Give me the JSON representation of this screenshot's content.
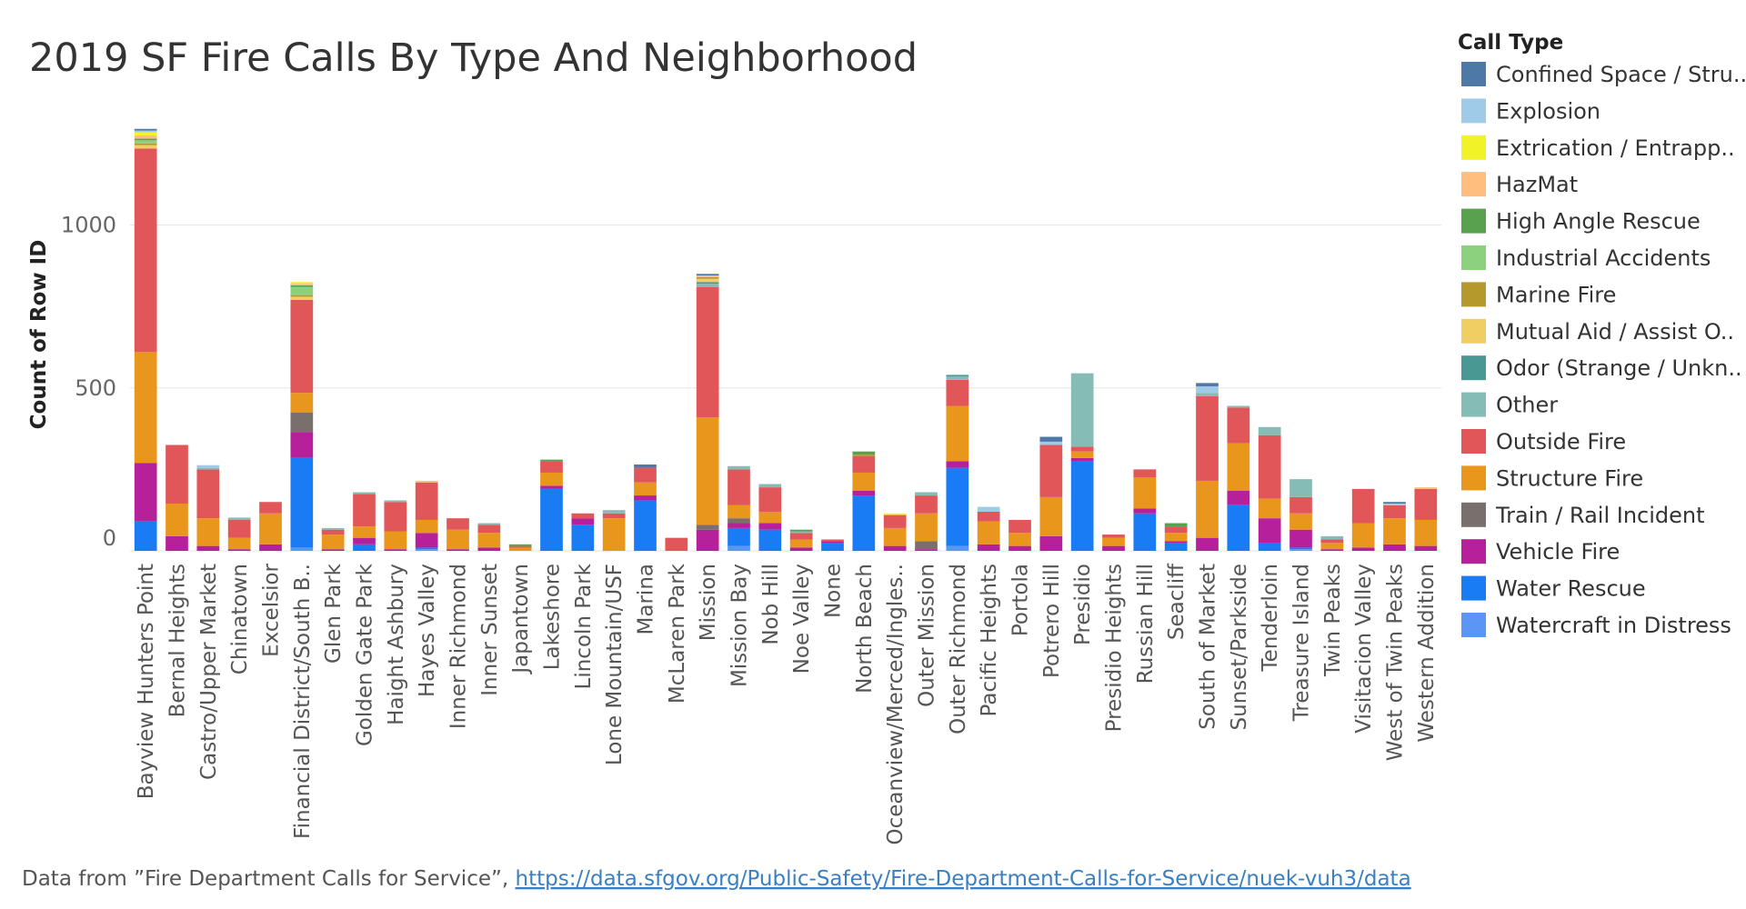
{
  "chart_data": {
    "type": "bar",
    "stacked": true,
    "title": "2019 SF Fire Calls By Type And Neighborhood",
    "ylabel": "Count of Row ID",
    "xlabel": "",
    "yticks": [
      0,
      500,
      1000
    ],
    "ylim": [
      0,
      1300
    ],
    "grid": true,
    "legend": {
      "title": "Call Type",
      "placement": "right",
      "items": [
        {
          "label": "Confined Space / Stru..",
          "color": "#4e79a7"
        },
        {
          "label": "Explosion",
          "color": "#a0cbe8"
        },
        {
          "label": "Extrication / Entrapp..",
          "color": "#f1f228"
        },
        {
          "label": "HazMat",
          "color": "#ffbe7d"
        },
        {
          "label": "High Angle Rescue",
          "color": "#59a14f"
        },
        {
          "label": "Industrial Accidents",
          "color": "#8cd17d"
        },
        {
          "label": "Marine Fire",
          "color": "#b6992d"
        },
        {
          "label": "Mutual Aid / Assist O..",
          "color": "#f1ce63"
        },
        {
          "label": "Odor (Strange / Unkn..",
          "color": "#499894"
        },
        {
          "label": "Other",
          "color": "#86bcb6"
        },
        {
          "label": "Outside Fire",
          "color": "#e15759"
        },
        {
          "label": "Structure Fire",
          "color": "#e8961c"
        },
        {
          "label": "Train / Rail Incident",
          "color": "#79706e"
        },
        {
          "label": "Vehicle Fire",
          "color": "#b6209a"
        },
        {
          "label": "Water Rescue",
          "color": "#1a7cf5"
        },
        {
          "label": "Watercraft in Distress",
          "color": "#5b95f5"
        }
      ]
    },
    "categories": [
      "Bayview Hunters Point",
      "Bernal Heights",
      "Castro/Upper Market",
      "Chinatown",
      "Excelsior",
      "Financial District/South B..",
      "Glen Park",
      "Golden Gate Park",
      "Haight Ashbury",
      "Hayes Valley",
      "Inner Richmond",
      "Inner Sunset",
      "Japantown",
      "Lakeshore",
      "Lincoln Park",
      "Lone Mountain/USF",
      "Marina",
      "McLaren Park",
      "Mission",
      "Mission Bay",
      "Nob Hill",
      "Noe Valley",
      "None",
      "North Beach",
      "Oceanview/Merced/Ingles..",
      "Outer Mission",
      "Outer Richmond",
      "Pacific Heights",
      "Portola",
      "Potrero Hill",
      "Presidio",
      "Presidio Heights",
      "Russian Hill",
      "Seacliff",
      "South of Market",
      "Sunset/Parkside",
      "Tenderloin",
      "Treasure Island",
      "Twin Peaks",
      "Visitacion Valley",
      "West of Twin Peaks",
      "Western Addition"
    ],
    "series": [
      {
        "name": "Confined Space / Stru..",
        "values": [
          5,
          0,
          0,
          0,
          0,
          0,
          0,
          0,
          0,
          0,
          0,
          0,
          0,
          0,
          0,
          0,
          10,
          0,
          5,
          0,
          0,
          0,
          0,
          0,
          0,
          0,
          0,
          0,
          0,
          15,
          0,
          0,
          0,
          0,
          10,
          0,
          0,
          0,
          0,
          0,
          5,
          0
        ]
      },
      {
        "name": "Explosion",
        "values": [
          5,
          0,
          8,
          0,
          0,
          0,
          0,
          0,
          0,
          0,
          0,
          0,
          0,
          0,
          0,
          0,
          0,
          0,
          0,
          0,
          0,
          0,
          0,
          0,
          0,
          0,
          0,
          15,
          0,
          10,
          0,
          0,
          0,
          0,
          20,
          0,
          0,
          0,
          0,
          0,
          5,
          0
        ]
      },
      {
        "name": "Extrication / Entrapp..",
        "values": [
          10,
          0,
          0,
          0,
          0,
          5,
          0,
          0,
          0,
          0,
          0,
          0,
          0,
          0,
          0,
          0,
          0,
          0,
          0,
          0,
          0,
          0,
          0,
          0,
          5,
          0,
          0,
          0,
          0,
          0,
          0,
          0,
          0,
          0,
          0,
          0,
          0,
          0,
          0,
          0,
          0,
          0
        ]
      },
      {
        "name": "HazMat",
        "values": [
          10,
          0,
          0,
          0,
          0,
          5,
          0,
          0,
          0,
          5,
          0,
          0,
          0,
          0,
          0,
          0,
          0,
          0,
          5,
          0,
          0,
          0,
          0,
          0,
          0,
          0,
          0,
          0,
          0,
          0,
          0,
          0,
          0,
          0,
          0,
          0,
          0,
          0,
          0,
          0,
          0,
          5
        ]
      },
      {
        "name": "High Angle Rescue",
        "values": [
          5,
          0,
          0,
          0,
          0,
          5,
          0,
          0,
          0,
          0,
          0,
          0,
          5,
          5,
          0,
          0,
          0,
          0,
          0,
          0,
          0,
          5,
          0,
          10,
          0,
          0,
          0,
          0,
          0,
          0,
          0,
          0,
          0,
          10,
          0,
          0,
          0,
          0,
          0,
          0,
          0,
          0
        ]
      },
      {
        "name": "Industrial Accidents",
        "values": [
          10,
          0,
          0,
          0,
          0,
          25,
          0,
          0,
          0,
          0,
          0,
          0,
          0,
          0,
          0,
          0,
          0,
          0,
          0,
          0,
          0,
          0,
          0,
          0,
          0,
          0,
          0,
          0,
          0,
          0,
          0,
          0,
          0,
          0,
          0,
          0,
          0,
          0,
          0,
          0,
          0,
          0
        ]
      },
      {
        "name": "Marine Fire",
        "values": [
          5,
          0,
          0,
          0,
          0,
          5,
          0,
          0,
          0,
          0,
          0,
          0,
          0,
          0,
          0,
          0,
          0,
          0,
          5,
          0,
          0,
          0,
          0,
          5,
          0,
          0,
          0,
          0,
          0,
          0,
          0,
          0,
          0,
          0,
          0,
          0,
          0,
          0,
          0,
          0,
          0,
          0
        ]
      },
      {
        "name": "Mutual Aid / Assist O..",
        "values": [
          10,
          0,
          0,
          0,
          0,
          10,
          0,
          0,
          0,
          0,
          0,
          0,
          0,
          0,
          0,
          0,
          0,
          0,
          10,
          0,
          0,
          0,
          0,
          0,
          0,
          0,
          0,
          0,
          0,
          0,
          0,
          0,
          0,
          0,
          0,
          0,
          0,
          0,
          0,
          0,
          0,
          0
        ]
      },
      {
        "name": "Odor (Strange / Unkn..",
        "values": [
          0,
          0,
          0,
          0,
          0,
          0,
          0,
          0,
          0,
          0,
          0,
          0,
          0,
          0,
          0,
          0,
          0,
          0,
          5,
          0,
          0,
          0,
          0,
          0,
          0,
          0,
          5,
          0,
          0,
          0,
          0,
          0,
          0,
          0,
          0,
          0,
          0,
          0,
          0,
          0,
          0,
          0
        ]
      },
      {
        "name": "Other",
        "values": [
          0,
          0,
          5,
          7,
          0,
          0,
          5,
          5,
          5,
          0,
          0,
          5,
          0,
          0,
          0,
          10,
          0,
          0,
          10,
          10,
          10,
          5,
          0,
          0,
          0,
          10,
          10,
          0,
          0,
          0,
          225,
          0,
          0,
          0,
          10,
          5,
          25,
          55,
          10,
          0,
          0,
          0
        ]
      },
      {
        "name": "Outside Fire",
        "values": [
          625,
          180,
          150,
          55,
          35,
          285,
          15,
          100,
          90,
          115,
          35,
          25,
          5,
          35,
          15,
          15,
          45,
          40,
          400,
          110,
          75,
          20,
          5,
          50,
          40,
          55,
          80,
          30,
          40,
          160,
          15,
          10,
          25,
          20,
          260,
          110,
          195,
          50,
          10,
          105,
          40,
          95
        ]
      },
      {
        "name": "Structure Fire",
        "values": [
          340,
          100,
          85,
          35,
          95,
          60,
          45,
          35,
          55,
          40,
          60,
          45,
          10,
          40,
          0,
          100,
          40,
          0,
          330,
          40,
          35,
          25,
          0,
          55,
          55,
          85,
          170,
          70,
          40,
          120,
          20,
          25,
          95,
          25,
          175,
          145,
          60,
          50,
          20,
          75,
          80,
          80
        ]
      },
      {
        "name": "Train / Rail Incident",
        "values": [
          0,
          0,
          0,
          0,
          0,
          60,
          0,
          0,
          0,
          0,
          0,
          0,
          0,
          0,
          0,
          0,
          0,
          0,
          15,
          15,
          0,
          0,
          0,
          0,
          0,
          25,
          0,
          0,
          0,
          0,
          0,
          0,
          0,
          0,
          0,
          0,
          0,
          0,
          0,
          0,
          0,
          0
        ]
      },
      {
        "name": "Vehicle Fire",
        "values": [
          180,
          45,
          15,
          5,
          20,
          80,
          5,
          20,
          5,
          45,
          5,
          10,
          0,
          10,
          20,
          0,
          15,
          0,
          65,
          15,
          20,
          10,
          5,
          15,
          15,
          5,
          20,
          20,
          15,
          45,
          10,
          15,
          15,
          5,
          40,
          45,
          75,
          55,
          5,
          10,
          20,
          15
        ]
      },
      {
        "name": "Water Rescue",
        "values": [
          90,
          0,
          0,
          0,
          0,
          275,
          0,
          20,
          0,
          5,
          0,
          0,
          0,
          190,
          80,
          0,
          155,
          0,
          0,
          55,
          65,
          0,
          25,
          170,
          0,
          0,
          240,
          0,
          0,
          0,
          275,
          0,
          115,
          25,
          0,
          140,
          25,
          5,
          0,
          0,
          0,
          0
        ]
      },
      {
        "name": "Watercraft in Distress",
        "values": [
          0,
          0,
          0,
          0,
          0,
          10,
          0,
          0,
          0,
          5,
          0,
          0,
          0,
          0,
          0,
          0,
          0,
          0,
          0,
          15,
          0,
          0,
          0,
          0,
          0,
          0,
          15,
          0,
          0,
          0,
          0,
          0,
          0,
          0,
          0,
          0,
          0,
          5,
          0,
          0,
          0,
          0
        ]
      }
    ]
  },
  "source": {
    "prefix": "Data from ”Fire Department Calls for Service”, ",
    "link": "https://data.sfgov.org/Public-Safety/Fire-Department-Calls-for-Service/nuek-vuh3/data"
  }
}
